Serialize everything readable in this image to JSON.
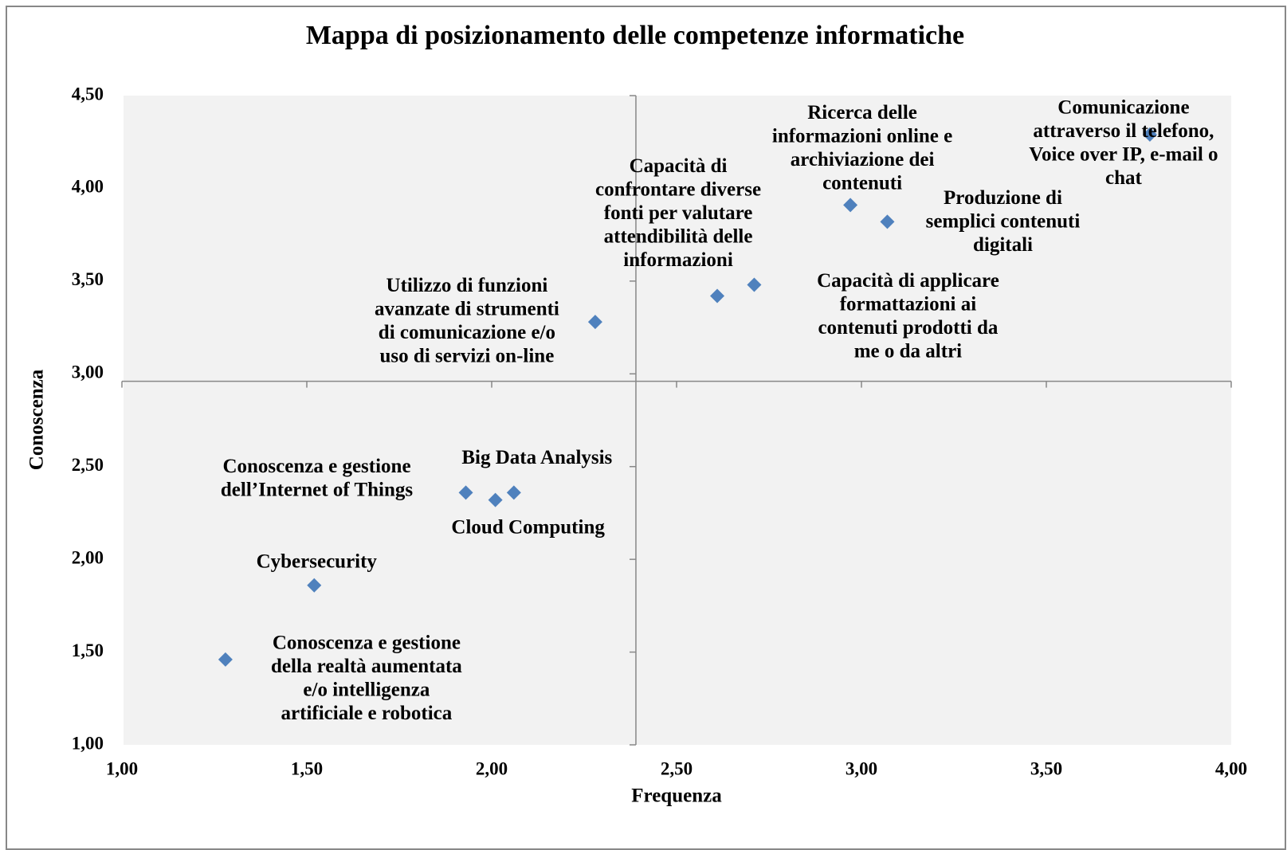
{
  "chart_data": {
    "type": "scatter",
    "title": "Mappa di posizionamento delle competenze informatiche",
    "x_label": "Frequenza",
    "y_label": "Conoscenza",
    "color": "#4f81bd",
    "x": [
      3.78,
      2.97,
      3.07,
      2.71,
      2.61,
      2.28,
      2.06,
      2.01,
      1.93,
      1.52,
      1.28
    ],
    "values": [
      4.29,
      3.91,
      3.82,
      3.48,
      3.42,
      3.28,
      2.36,
      2.32,
      2.36,
      1.86,
      1.46
    ],
    "labels": [
      [
        "Comunicazione",
        "attraverso il telefono,",
        "Voice over IP, e-mail o",
        "chat"
      ],
      [
        "Ricerca delle",
        "informazioni online e",
        "archiviazione dei",
        "contenuti"
      ],
      [
        "Produzione di",
        "semplici contenuti",
        "digitali"
      ],
      [
        "Capacità di applicare",
        "formattazioni ai",
        "contenuti prodotti da",
        "me o da altri"
      ],
      [
        "Capacità di",
        "confrontare diverse",
        "fonti per valutare",
        "attendibilità delle",
        "informazioni"
      ],
      [
        "Utilizzo di funzioni",
        "avanzate di strumenti",
        "di comunicazione e/o",
        "uso di servizi on-line"
      ],
      [
        "Big Data Analysis"
      ],
      [
        "Cloud Computing"
      ],
      [
        "Conoscenza e gestione",
        "dell’Internet of Things"
      ],
      [
        "Cybersecurity"
      ],
      [
        "Conoscenza e gestione",
        "della realtà aumentata",
        "e/o intelligenza",
        "artificiale e robotica"
      ]
    ],
    "xlim": [
      1,
      4
    ],
    "xticks": [
      {
        "value": 1,
        "label": "1,00"
      },
      {
        "value": 1.5,
        "label": "1,50"
      },
      {
        "value": 2,
        "label": "2,00"
      },
      {
        "value": 2.5,
        "label": "2,50"
      },
      {
        "value": 3,
        "label": "3,00"
      },
      {
        "value": 3.5,
        "label": "3,50"
      },
      {
        "value": 4,
        "label": "4,00"
      }
    ],
    "ylim": [
      1,
      4.5
    ],
    "yticks": [
      {
        "value": 1,
        "label": "1,00"
      },
      {
        "value": 1.5,
        "label": "1,50"
      },
      {
        "value": 2,
        "label": "2,00"
      },
      {
        "value": 2.5,
        "label": "2,50"
      },
      {
        "value": 3,
        "label": "3,00"
      },
      {
        "value": 3.5,
        "label": "3,50"
      },
      {
        "value": 4,
        "label": "4,00"
      },
      {
        "value": 4.5,
        "label": "4,50"
      }
    ],
    "x_cross": 2.39,
    "y_cross": 2.96
  }
}
